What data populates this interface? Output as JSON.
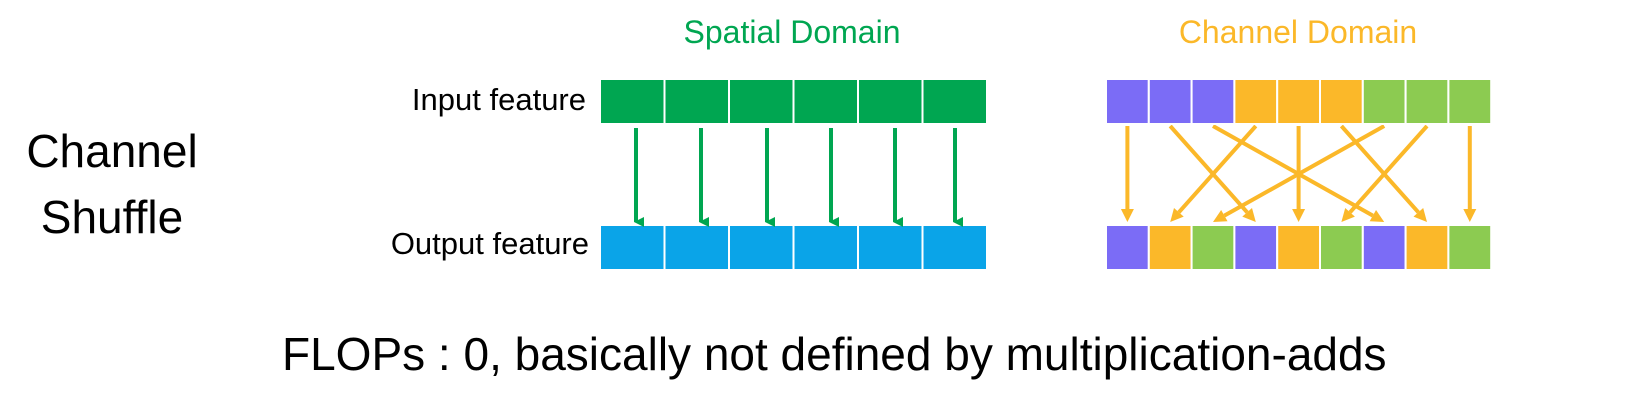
{
  "title": {
    "line1": "Channel",
    "line2": "Shuffle"
  },
  "spatial": {
    "heading": "Spatial Domain",
    "input_label": "Input feature",
    "output_label": "Output feature",
    "cell_count": 6,
    "input_color": "#00A651",
    "output_color": "#0AA4E8",
    "arrow_color": "#00A651"
  },
  "channel": {
    "heading": "Channel Domain",
    "input_groups": [
      "purple",
      "purple",
      "purple",
      "yellow",
      "yellow",
      "yellow",
      "green",
      "green",
      "green"
    ],
    "output_groups": [
      "purple",
      "yellow",
      "green",
      "purple",
      "yellow",
      "green",
      "purple",
      "yellow",
      "green"
    ],
    "arrow_color": "#FBB829"
  },
  "colors": {
    "purple": "#7B6CF6",
    "yellow": "#FBB829",
    "green": "#8CCB51",
    "spatial_heading": "#00A651",
    "channel_heading": "#FBB829"
  },
  "footer": "FLOPs : 0, basically not defined by multiplication-adds"
}
